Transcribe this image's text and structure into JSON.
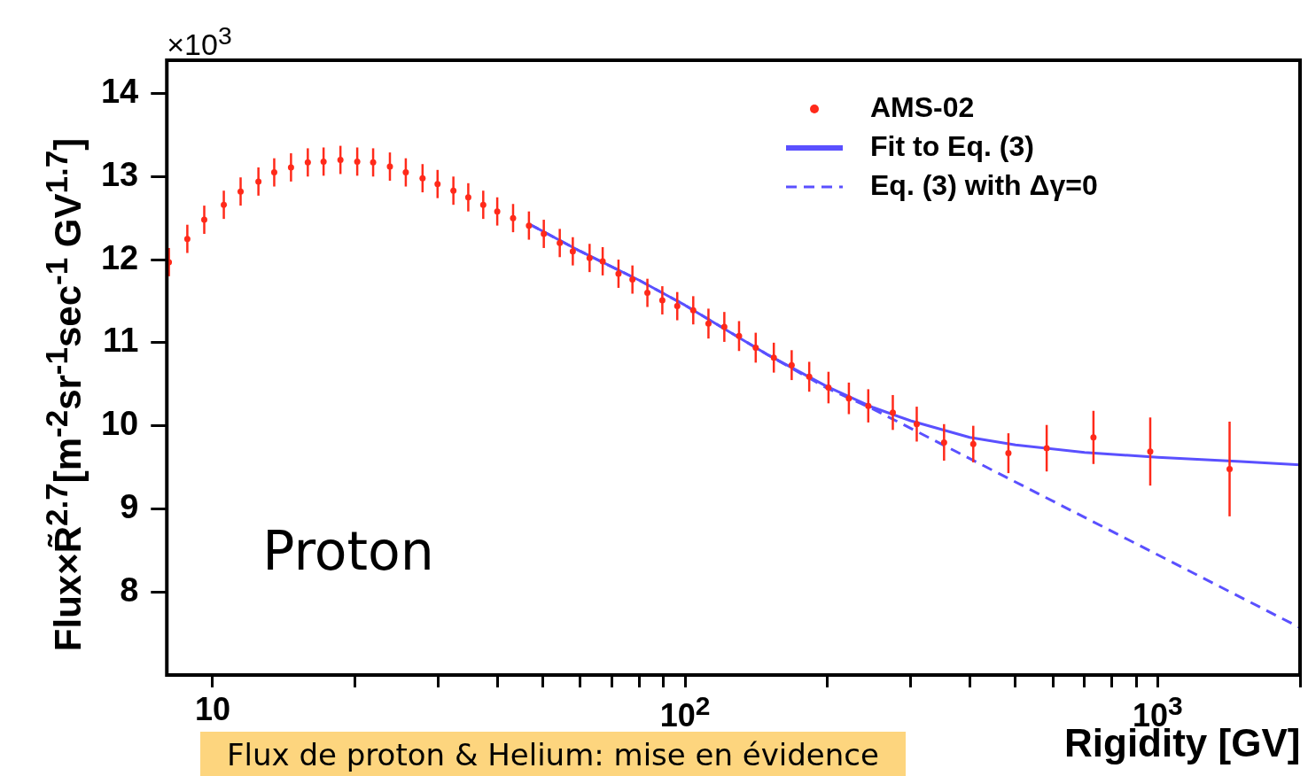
{
  "chart_data": {
    "type": "scatter",
    "xlabel": "Rigidity [GV]",
    "ylabel": "Flux×R̃$^{2.7}$[m$^{-2}$sr$^{-1}$sec$^{-1}$ GV$^{1.7}$]",
    "annotations": [
      "×10$^{3}$",
      "Proton",
      "Flux de proton & Helium: mise en évidence"
    ],
    "log": "x",
    "grid": false,
    "legend": "top right",
    "xlim": [
      8,
      2000
    ],
    "xticks": [
      {
        "value": 10,
        "label": "10"
      },
      {
        "value": 20,
        "label": null
      },
      {
        "value": 30,
        "label": null
      },
      {
        "value": 40,
        "label": null
      },
      {
        "value": 50,
        "label": null
      },
      {
        "value": 60,
        "label": null
      },
      {
        "value": 70,
        "label": null
      },
      {
        "value": 80,
        "label": null
      },
      {
        "value": 90,
        "label": null
      },
      {
        "value": 100,
        "label": "10$^{2}$"
      },
      {
        "value": 200,
        "label": null
      },
      {
        "value": 300,
        "label": null
      },
      {
        "value": 400,
        "label": null
      },
      {
        "value": 500,
        "label": null
      },
      {
        "value": 600,
        "label": null
      },
      {
        "value": 700,
        "label": null
      },
      {
        "value": 800,
        "label": null
      },
      {
        "value": 900,
        "label": null
      },
      {
        "value": 1000,
        "label": "10$^{3}$"
      },
      {
        "value": 2000,
        "label": null
      }
    ],
    "ylim": [
      7,
      14.4
    ],
    "yticks": [
      8,
      9,
      10,
      11,
      12,
      13,
      14
    ],
    "series": [
      {
        "name": "AMS-02",
        "color": "#ff2a1a",
        "marker": "circle",
        "x": [
          8.08,
          8.84,
          9.6,
          10.56,
          11.46,
          12.5,
          13.5,
          14.65,
          15.9,
          17.17,
          18.64,
          20.23,
          21.86,
          23.72,
          25.63,
          27.81,
          29.92,
          32.32,
          34.75,
          37.38,
          40.02,
          43.23,
          46.7,
          50.21,
          54.27,
          57.83,
          62.76,
          66.89,
          72.25,
          77.33,
          83.18,
          89.45,
          96.2,
          104,
          112,
          121,
          130,
          141,
          154,
          168,
          183,
          201,
          222,
          244,
          275,
          309,
          353,
          407,
          483,
          582,
          731,
          964,
          1419
        ],
        "values": [
          11.97,
          12.25,
          12.48,
          12.66,
          12.82,
          12.94,
          13.05,
          13.11,
          13.17,
          13.18,
          13.2,
          13.18,
          13.17,
          13.12,
          13.05,
          12.98,
          12.91,
          12.83,
          12.75,
          12.66,
          12.58,
          12.5,
          12.41,
          12.31,
          12.2,
          12.1,
          12.02,
          11.98,
          11.83,
          11.76,
          11.6,
          11.51,
          11.44,
          11.39,
          11.23,
          11.19,
          11.08,
          10.94,
          10.82,
          10.73,
          10.59,
          10.46,
          10.33,
          10.24,
          10.16,
          10.02,
          9.8,
          9.78,
          9.67,
          9.73,
          9.86,
          9.69,
          9.48
        ],
        "errors": [
          0.17,
          0.17,
          0.17,
          0.17,
          0.17,
          0.17,
          0.17,
          0.17,
          0.17,
          0.17,
          0.17,
          0.17,
          0.17,
          0.17,
          0.17,
          0.17,
          0.17,
          0.17,
          0.17,
          0.17,
          0.17,
          0.17,
          0.17,
          0.17,
          0.17,
          0.17,
          0.17,
          0.17,
          0.17,
          0.17,
          0.17,
          0.17,
          0.17,
          0.17,
          0.18,
          0.18,
          0.18,
          0.18,
          0.18,
          0.18,
          0.18,
          0.19,
          0.19,
          0.2,
          0.21,
          0.21,
          0.22,
          0.22,
          0.24,
          0.28,
          0.32,
          0.41,
          0.57
        ]
      },
      {
        "name": "Fit to Eq. (3)",
        "type": "line",
        "color": "#5a50ff",
        "line_style": "solid",
        "marker": "none",
        "x": [
          46.7,
          60,
          80,
          100,
          150,
          200,
          250,
          300,
          400,
          500,
          700,
          1000,
          1500,
          2000
        ],
        "values": [
          12.43,
          12.1,
          11.75,
          11.45,
          10.85,
          10.47,
          10.22,
          10.06,
          9.86,
          9.77,
          9.68,
          9.62,
          9.57,
          9.53
        ]
      },
      {
        "name": "Eq. (3) with Δγ=0",
        "type": "line",
        "color": "#5a50ff",
        "line_style": "dashed",
        "marker": "none",
        "x": [
          46.7,
          60,
          80,
          100,
          150,
          200,
          250,
          2000
        ],
        "values": [
          12.43,
          12.1,
          11.75,
          11.45,
          10.85,
          10.45,
          10.2,
          7.57
        ]
      }
    ]
  }
}
